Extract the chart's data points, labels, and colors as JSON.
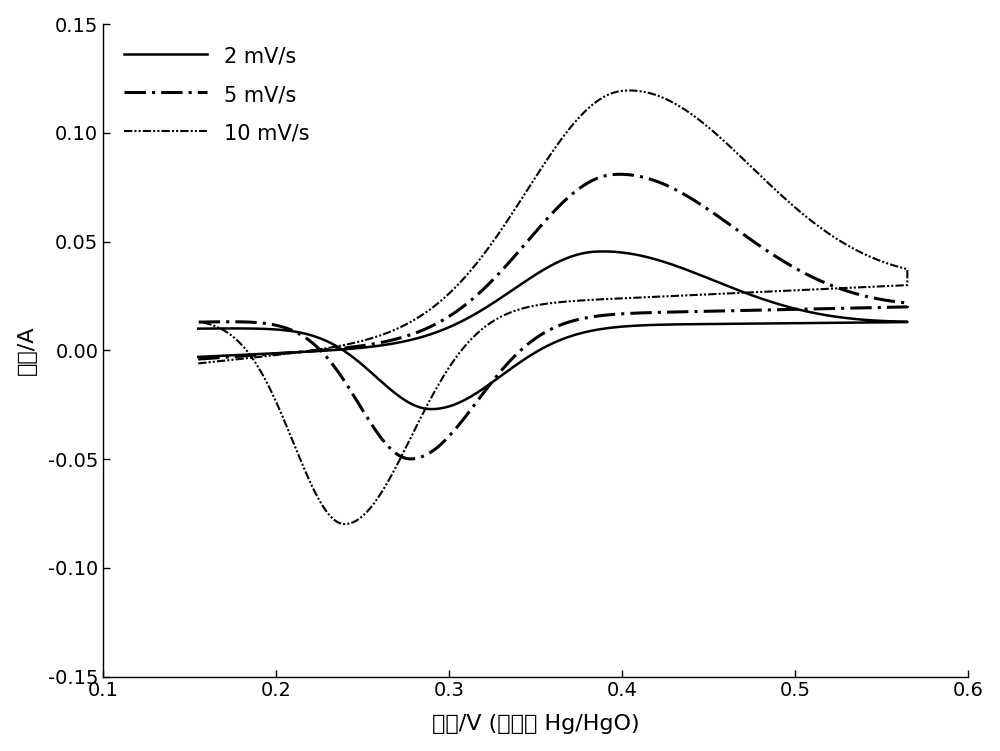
{
  "title": "",
  "xlabel": "电位/V (相对于 Hg/HgO)",
  "ylabel": "电流/A",
  "xlim": [
    0.1,
    0.6
  ],
  "ylim": [
    -0.15,
    0.15
  ],
  "xticks": [
    0.1,
    0.2,
    0.3,
    0.4,
    0.5,
    0.6
  ],
  "yticks": [
    -0.15,
    -0.1,
    -0.05,
    0.0,
    0.05,
    0.1,
    0.15
  ],
  "series": [
    {
      "label": "2 mV/s",
      "linewidth": 1.8,
      "color": "#000000"
    },
    {
      "label": "5 mV/s",
      "linewidth": 2.2,
      "color": "#000000"
    },
    {
      "label": "10 mV/s",
      "linewidth": 1.5,
      "color": "#000000"
    }
  ],
  "background_color": "#ffffff",
  "legend_loc": "upper left",
  "legend_fontsize": 15,
  "axis_fontsize": 16,
  "tick_fontsize": 14
}
